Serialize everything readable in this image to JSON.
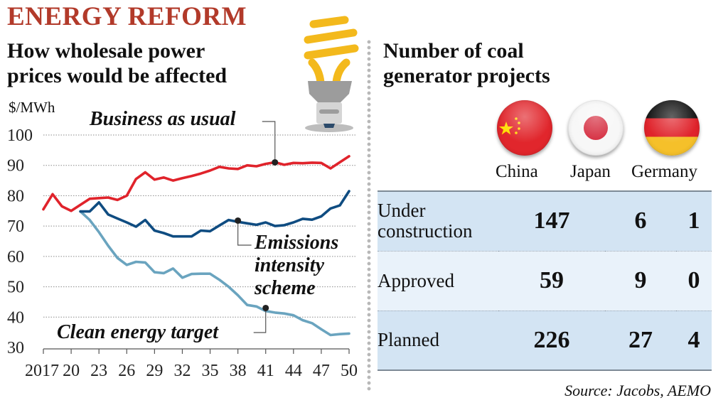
{
  "header": {
    "kicker": "ENERGY REFORM",
    "left_title_line1": "How wholesale power",
    "left_title_line2": "prices would be affected",
    "unit": "$/MWh",
    "right_title_line1": "Number of coal",
    "right_title_line2": "generator projects"
  },
  "annotations": {
    "bau": "Business as usual",
    "eis_line1": "Emissions",
    "eis_line2": "intensity",
    "eis_line3": "scheme",
    "cet": "Clean energy target"
  },
  "icons": [
    "light-bulb-icon",
    "china-flag-icon",
    "japan-flag-icon",
    "germany-flag-icon"
  ],
  "colors": {
    "kicker": "#b23a2a",
    "business_as_usual": "#e0232b",
    "emissions_intensity_scheme": "#0f4c81",
    "clean_energy_target": "#6aa4bf",
    "table_band": "#d3e4f3",
    "table_band_light": "#e9f2fa"
  },
  "chart_data": {
    "type": "line",
    "title": "How wholesale power prices would be affected",
    "xlabel": "",
    "ylabel": "$/MWh",
    "xlim": [
      2017,
      2050
    ],
    "ylim": [
      30,
      100
    ],
    "yticks": [
      30,
      40,
      50,
      60,
      70,
      80,
      90,
      100
    ],
    "xticks": [
      2017,
      2020,
      2023,
      2026,
      2029,
      2032,
      2035,
      2038,
      2041,
      2044,
      2047,
      2050
    ],
    "xtick_labels": [
      "2017",
      "20",
      "23",
      "26",
      "29",
      "32",
      "35",
      "38",
      "41",
      "44",
      "47",
      "50"
    ],
    "grid": true,
    "legend": "inline-annotations",
    "series": [
      {
        "name": "Business as usual",
        "x": [
          2017,
          2018,
          2019,
          2020,
          2021,
          2022,
          2023,
          2024,
          2025,
          2026,
          2027,
          2028,
          2029,
          2030,
          2031,
          2032,
          2033,
          2034,
          2035,
          2036,
          2037,
          2038,
          2039,
          2040,
          2041,
          2042,
          2043,
          2044,
          2045,
          2046,
          2047,
          2048,
          2049,
          2050
        ],
        "values": [
          75.5,
          80.5,
          76.5,
          75,
          77,
          79,
          79.2,
          79.4,
          78.6,
          80,
          85.5,
          87.7,
          85.3,
          86,
          85,
          85.8,
          86.5,
          87.3,
          88.3,
          89.5,
          89,
          88.8,
          90,
          89.7,
          90.5,
          91,
          90.2,
          90.8,
          90.7,
          90.9,
          90.8,
          89,
          91,
          93
        ]
      },
      {
        "name": "Emissions intensity scheme",
        "x": [
          2021,
          2022,
          2023,
          2024,
          2025,
          2026,
          2027,
          2028,
          2029,
          2030,
          2031,
          2032,
          2033,
          2034,
          2035,
          2036,
          2037,
          2038,
          2039,
          2040,
          2041,
          2042,
          2043,
          2044,
          2045,
          2046,
          2047,
          2048,
          2049,
          2050
        ],
        "values": [
          74.8,
          74.8,
          77.8,
          73.8,
          72.5,
          71.2,
          69.8,
          72,
          68.5,
          67.7,
          66.6,
          66.6,
          66.6,
          68.5,
          68.3,
          70.2,
          72,
          71.4,
          70.9,
          70.4,
          71.2,
          70,
          70.3,
          71.2,
          72.4,
          72.1,
          73.2,
          75.8,
          76.8,
          81.5
        ]
      },
      {
        "name": "Clean energy target",
        "x": [
          2021,
          2022,
          2023,
          2024,
          2025,
          2026,
          2027,
          2028,
          2029,
          2030,
          2031,
          2032,
          2033,
          2034,
          2035,
          2036,
          2037,
          2038,
          2039,
          2040,
          2041,
          2042,
          2043,
          2044,
          2045,
          2046,
          2047,
          2048,
          2049,
          2050
        ],
        "values": [
          74.8,
          72,
          68,
          63.5,
          59.5,
          57.2,
          58.2,
          58,
          54.8,
          54.5,
          56,
          53,
          54.2,
          54.3,
          54.3,
          52.3,
          50,
          47.2,
          44,
          43.5,
          42,
          41.5,
          41.2,
          40.6,
          39,
          38,
          36,
          34.1,
          34.4,
          34.6
        ]
      }
    ],
    "markers": [
      {
        "series": "Business as usual",
        "x": 2042,
        "y": 91
      },
      {
        "series": "Emissions intensity scheme",
        "x": 2038,
        "y": 71.8
      },
      {
        "series": "Clean energy target",
        "x": 2041,
        "y": 43
      }
    ]
  },
  "table": {
    "columns": [
      "China",
      "Japan",
      "Germany"
    ],
    "rows": [
      {
        "label_line1": "Under",
        "label_line2": "construction",
        "values": [
          "147",
          "6",
          "1"
        ]
      },
      {
        "label_line1": "Approved",
        "label_line2": "",
        "values": [
          "59",
          "9",
          "0"
        ]
      },
      {
        "label_line1": "Planned",
        "label_line2": "",
        "values": [
          "226",
          "27",
          "4"
        ]
      }
    ]
  },
  "source": "Source: Jacobs, AEMO"
}
